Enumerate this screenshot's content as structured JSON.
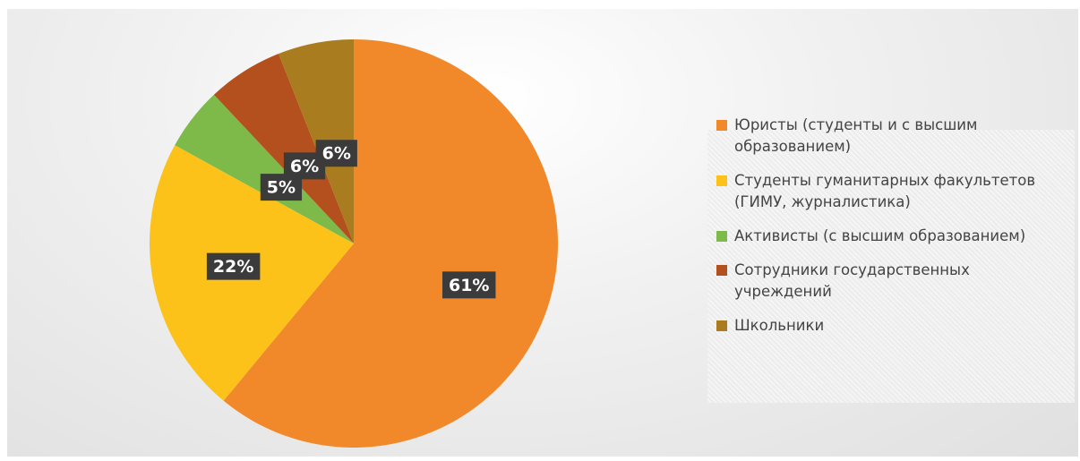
{
  "chart_data": {
    "type": "pie",
    "categories": [
      "Юристы (студенты и с высшим образованием)",
      "Студенты гуманитарных факультетов (ГИМУ, журналистика)",
      "Активисты (с высшим образованием)",
      "Сотрудники государственных учреждений",
      "Школьники"
    ],
    "values": [
      61,
      22,
      5,
      6,
      6
    ],
    "value_labels": [
      "61%",
      "22%",
      "5%",
      "6%",
      "6%"
    ],
    "colors": [
      "#f18829",
      "#fcc21a",
      "#7dba4a",
      "#b4501d",
      "#a97d1f"
    ],
    "legend": "right"
  }
}
